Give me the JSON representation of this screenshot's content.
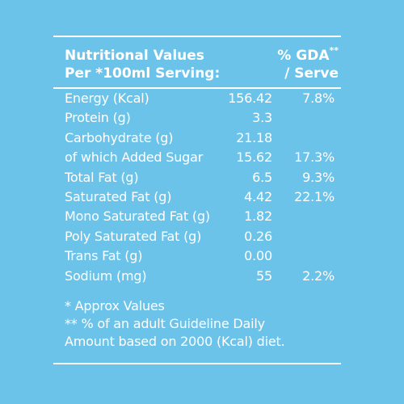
{
  "header": {
    "left_line1": "Nutritional Values",
    "left_line2": "Per *100ml Serving:",
    "right_line1": "% GDA",
    "right_line1_sup": "**",
    "right_line2": "/ Serve"
  },
  "rows": [
    {
      "label": "Energy (Kcal)",
      "value": "156.42",
      "gda": "7.8%"
    },
    {
      "label": "Protein (g)",
      "value": "3.3",
      "gda": ""
    },
    {
      "label": "Carbohydrate (g)",
      "value": "21.18",
      "gda": ""
    },
    {
      "label": "of which Added Sugar",
      "value": "15.62",
      "gda": "17.3%"
    },
    {
      "label": "Total Fat (g)",
      "value": "6.5",
      "gda": "9.3%"
    },
    {
      "label": "Saturated Fat (g)",
      "value": "4.42",
      "gda": "22.1%"
    },
    {
      "label": "Mono Saturated Fat (g)",
      "value": "1.82",
      "gda": ""
    },
    {
      "label": "Poly Saturated Fat (g)",
      "value": "0.26",
      "gda": ""
    },
    {
      "label": "Trans Fat (g)",
      "value": "0.00",
      "gda": ""
    },
    {
      "label": "Sodium (mg)",
      "value": "55",
      "gda": "2.2%"
    }
  ],
  "notes": {
    "approx": "* Approx Values",
    "gda_line1": "** % of an adult Guideline Daily",
    "gda_line2": "Amount based on 2000 (Kcal) diet."
  },
  "colors": {
    "background": "#6cc3ea",
    "text": "#ffffff"
  }
}
